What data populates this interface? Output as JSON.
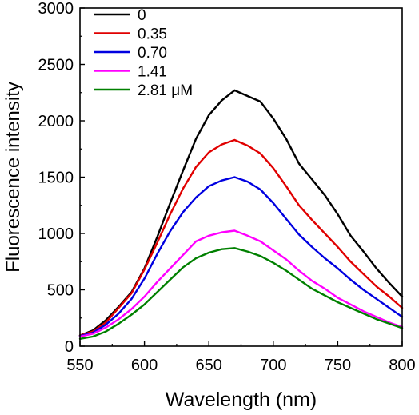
{
  "chart_data": {
    "type": "line",
    "xlabel": "Wavelength (nm)",
    "ylabel": "Fluorescence intensity",
    "xlim": [
      550,
      800
    ],
    "ylim": [
      0,
      3000
    ],
    "x_ticks": [
      550,
      600,
      650,
      700,
      750,
      800
    ],
    "y_ticks": [
      0,
      500,
      1000,
      1500,
      2000,
      2500,
      3000
    ],
    "x_tick_labels": [
      "550",
      "600",
      "650",
      "700",
      "750",
      "800"
    ],
    "y_tick_labels": [
      "0",
      "500",
      "1000",
      "1500",
      "2000",
      "2500",
      "3000"
    ],
    "grid": false,
    "legend_position": "top-left",
    "series": [
      {
        "name": "0",
        "color": "#000000",
        "x": [
          550,
          560,
          570,
          580,
          590,
          600,
          610,
          620,
          630,
          640,
          650,
          660,
          670,
          680,
          690,
          700,
          710,
          720,
          730,
          740,
          750,
          760,
          770,
          780,
          790,
          800
        ],
        "y": [
          95,
          140,
          230,
          350,
          480,
          690,
          970,
          1270,
          1560,
          1840,
          2050,
          2180,
          2270,
          2220,
          2170,
          2020,
          1840,
          1620,
          1480,
          1340,
          1170,
          980,
          840,
          690,
          560,
          440
        ]
      },
      {
        "name": "0.35",
        "color": "#e00000",
        "x": [
          550,
          560,
          570,
          580,
          590,
          600,
          610,
          620,
          630,
          640,
          650,
          660,
          670,
          680,
          690,
          700,
          710,
          720,
          730,
          740,
          750,
          760,
          770,
          780,
          790,
          800
        ],
        "y": [
          95,
          130,
          210,
          340,
          470,
          680,
          920,
          1170,
          1400,
          1590,
          1720,
          1790,
          1830,
          1780,
          1710,
          1580,
          1420,
          1250,
          1120,
          1000,
          880,
          750,
          640,
          530,
          440,
          340
        ]
      },
      {
        "name": "0.70",
        "color": "#0000e0",
        "x": [
          550,
          560,
          570,
          580,
          590,
          600,
          610,
          620,
          630,
          640,
          650,
          660,
          670,
          680,
          690,
          700,
          710,
          720,
          730,
          740,
          750,
          760,
          770,
          780,
          790,
          800
        ],
        "y": [
          90,
          120,
          190,
          290,
          420,
          600,
          820,
          1020,
          1190,
          1320,
          1420,
          1470,
          1500,
          1460,
          1390,
          1270,
          1130,
          990,
          880,
          780,
          690,
          590,
          500,
          420,
          340,
          260
        ]
      },
      {
        "name": "1.41",
        "color": "#ff00ff",
        "x": [
          550,
          560,
          570,
          580,
          590,
          600,
          610,
          620,
          630,
          640,
          650,
          660,
          670,
          680,
          690,
          700,
          710,
          720,
          730,
          740,
          750,
          760,
          770,
          780,
          790,
          800
        ],
        "y": [
          85,
          110,
          165,
          240,
          330,
          440,
          570,
          690,
          810,
          930,
          980,
          1010,
          1025,
          980,
          930,
          850,
          770,
          670,
          580,
          510,
          430,
          370,
          310,
          260,
          210,
          170
        ]
      },
      {
        "name": "2.81 μM",
        "color": "#008000",
        "x": [
          550,
          560,
          570,
          580,
          590,
          600,
          610,
          620,
          630,
          640,
          650,
          660,
          670,
          680,
          690,
          700,
          710,
          720,
          730,
          740,
          750,
          760,
          770,
          780,
          790,
          800
        ],
        "y": [
          65,
          85,
          130,
          200,
          280,
          370,
          480,
          590,
          700,
          780,
          830,
          860,
          870,
          840,
          800,
          740,
          670,
          590,
          510,
          450,
          390,
          340,
          290,
          240,
          200,
          160
        ]
      }
    ]
  }
}
